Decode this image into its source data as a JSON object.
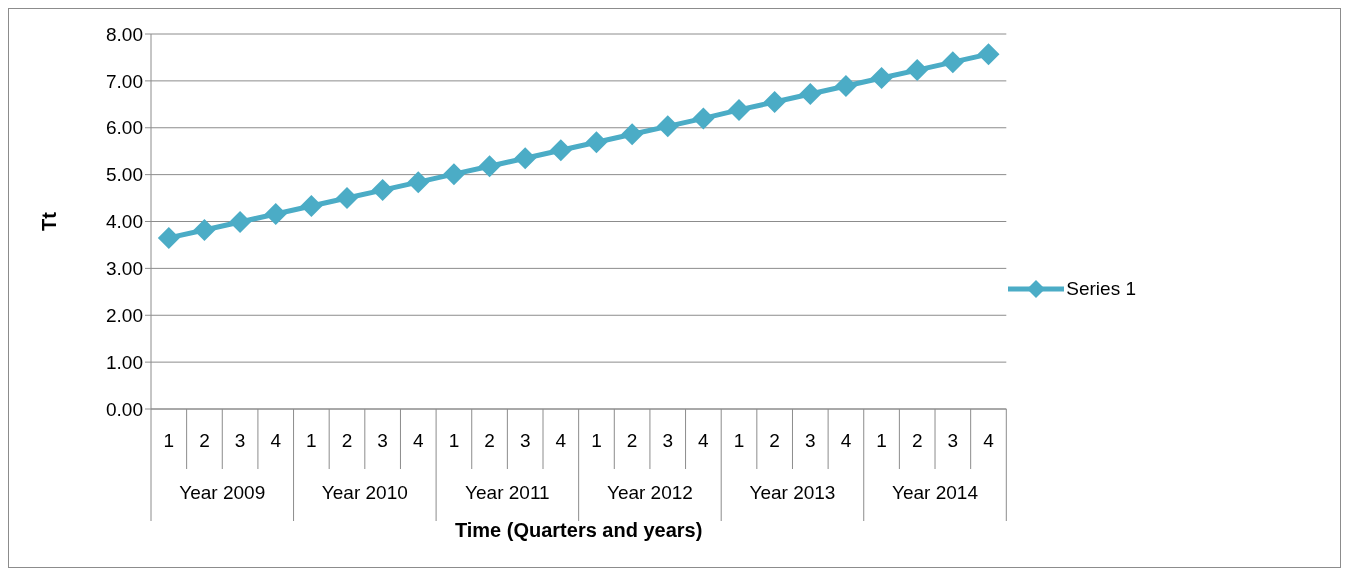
{
  "chart_data": {
    "type": "line",
    "xlabel": "Time (Quarters and years)",
    "ylabel": "Tt",
    "categories": [
      "1",
      "2",
      "3",
      "4",
      "1",
      "2",
      "3",
      "4",
      "1",
      "2",
      "3",
      "4",
      "1",
      "2",
      "3",
      "4",
      "1",
      "2",
      "3",
      "4",
      "1",
      "2",
      "3",
      "4"
    ],
    "annotations": [
      "Year 2009",
      "Year 2010",
      "Year 2011",
      "Year 2012",
      "Year 2013",
      "Year 2014"
    ],
    "series": [
      {
        "name": "Series 1",
        "color": "#4bacc6",
        "values": [
          3.65,
          3.82,
          3.99,
          4.16,
          4.33,
          4.5,
          4.67,
          4.84,
          5.01,
          5.18,
          5.35,
          5.52,
          5.69,
          5.86,
          6.03,
          6.2,
          6.38,
          6.55,
          6.72,
          6.89,
          7.06,
          7.23,
          7.4,
          7.57
        ]
      }
    ],
    "ylim": [
      0,
      8
    ],
    "yticks": [
      {
        "value": 0,
        "label": "0.00"
      },
      {
        "value": 1,
        "label": "1.00"
      },
      {
        "value": 2,
        "label": "2.00"
      },
      {
        "value": 3,
        "label": "3.00"
      },
      {
        "value": 4,
        "label": "4.00"
      },
      {
        "value": 5,
        "label": "5.00"
      },
      {
        "value": 6,
        "label": "6.00"
      },
      {
        "value": 7,
        "label": "7.00"
      },
      {
        "value": 8,
        "label": "8.00"
      }
    ],
    "grid": "y",
    "legend": "right",
    "marker": "diamond",
    "line_style": "solid"
  }
}
